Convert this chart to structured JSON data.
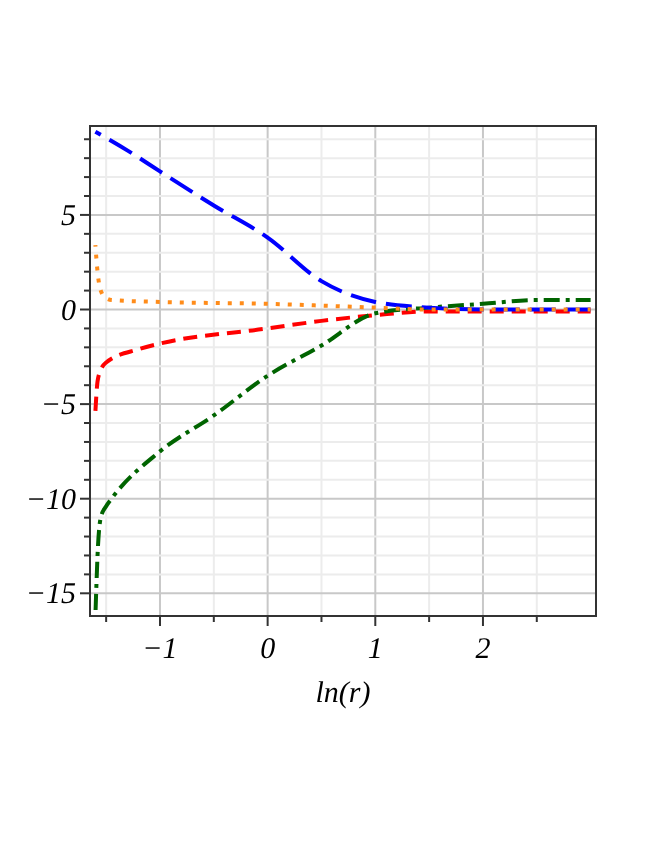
{
  "chart_data": {
    "type": "line",
    "xlabel": "ln(r)",
    "xlim": [
      -1.65,
      3.05
    ],
    "ylim": [
      -16.2,
      9.7
    ],
    "xticks": [
      {
        "value": -1.5,
        "label": null
      },
      -1,
      {
        "value": -0.5,
        "label": null
      },
      0,
      {
        "value": 0.5,
        "label": null
      },
      1,
      {
        "value": 1.5,
        "label": null
      },
      2,
      {
        "value": 2.5,
        "label": null
      }
    ],
    "yticks": [
      -15,
      {
        "value": -14,
        "label": null
      },
      {
        "value": -13,
        "label": null
      },
      {
        "value": -12,
        "label": null
      },
      {
        "value": -11,
        "label": null
      },
      -10,
      {
        "value": -9,
        "label": null
      },
      {
        "value": -8,
        "label": null
      },
      {
        "value": -7,
        "label": null
      },
      {
        "value": -6,
        "label": null
      },
      -5,
      {
        "value": -4,
        "label": null
      },
      {
        "value": -3,
        "label": null
      },
      {
        "value": -2,
        "label": null
      },
      {
        "value": -1,
        "label": null
      },
      0,
      {
        "value": 1,
        "label": null
      },
      {
        "value": 2,
        "label": null
      },
      {
        "value": 3,
        "label": null
      },
      {
        "value": 4,
        "label": null
      },
      5,
      {
        "value": 6,
        "label": null
      },
      {
        "value": 7,
        "label": null
      },
      {
        "value": 8,
        "label": null
      },
      {
        "value": 9,
        "label": null
      }
    ],
    "grid": true,
    "series": [
      {
        "color": "#ff0000",
        "line_style": "dashed",
        "x": [
          -1.6,
          -1.58,
          -1.55,
          -1.5,
          -1.2,
          -1,
          0,
          0.5,
          1,
          1.5,
          2,
          3.0
        ],
        "values": [
          -5.4,
          -3.8,
          -3.2,
          -2.8,
          -2.1,
          -1.8,
          -1,
          -0.6,
          -0.3,
          -0.1,
          -0.1,
          -0.1
        ]
      },
      {
        "color": "#006400",
        "line_style": "dashdot",
        "x": [
          -1.6,
          -1.59,
          -1.58,
          -1.55,
          -1.5,
          -1.45,
          -1,
          -0.5,
          0,
          0.5,
          1,
          1.5,
          2,
          2.5,
          3.0
        ],
        "values": [
          -16.2,
          -14.5,
          -13,
          -11,
          -10.4,
          -10,
          -7.5,
          -5.6,
          -3.5,
          -1.9,
          -0.2,
          0.1,
          0.3,
          0.5,
          0.5
        ]
      },
      {
        "color": "#0000ff",
        "line_style": "longdash",
        "x": [
          -1.6,
          -1.3,
          -1,
          -0.5,
          0,
          0.5,
          1,
          1.5,
          2,
          2.5,
          3.0
        ],
        "values": [
          9.4,
          8.4,
          7.3,
          5.5,
          3.8,
          1.5,
          0.4,
          0.1,
          0,
          0,
          0
        ]
      },
      {
        "color": "#ff8c1a",
        "line_style": "dotted",
        "x": [
          -1.6,
          -1.58,
          -1.55,
          -1.5,
          -1.45,
          -1,
          0,
          1,
          1.5,
          2,
          3.0
        ],
        "values": [
          3.4,
          2,
          1,
          0.6,
          0.5,
          0.4,
          0.3,
          0.1,
          0,
          0,
          0
        ]
      }
    ]
  }
}
